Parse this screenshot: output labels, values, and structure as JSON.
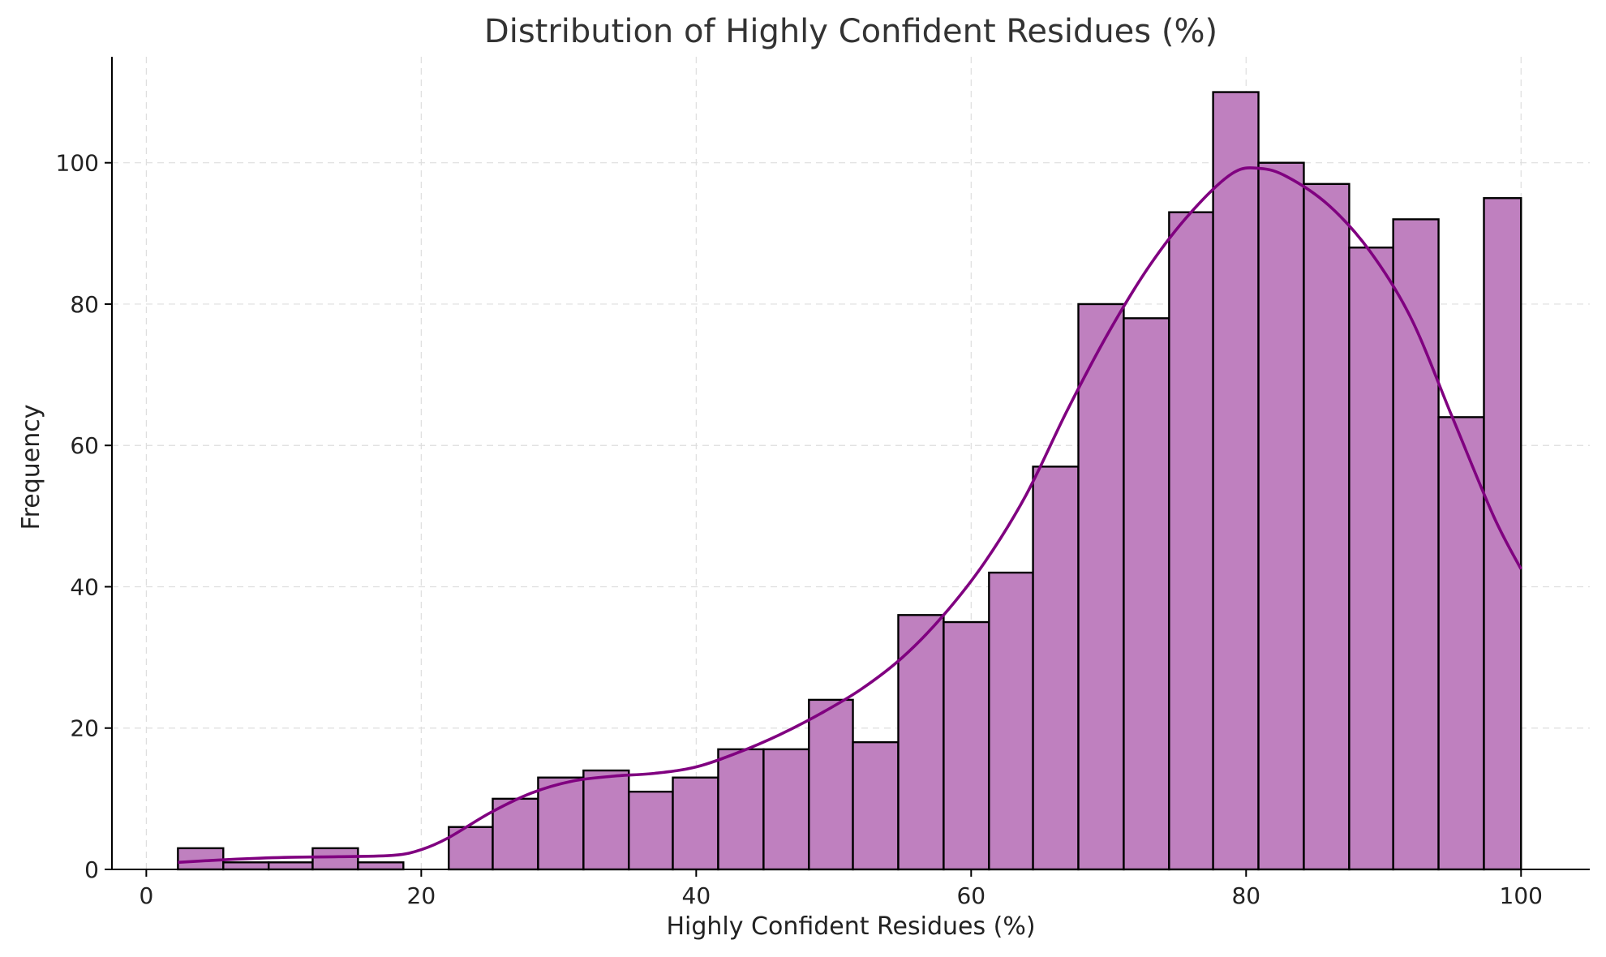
{
  "chart_data": {
    "type": "bar",
    "title": "Distribution of Highly Confident Residues (%)",
    "xlabel": "Highly Confident Residues (%)",
    "ylabel": "Frequency",
    "xlim": [
      -2.5,
      105
    ],
    "ylim": [
      0,
      115
    ],
    "xticks": [
      0,
      20,
      40,
      60,
      80,
      100
    ],
    "yticks": [
      0,
      20,
      40,
      60,
      80,
      100
    ],
    "grid": true,
    "bar_color": "#bf80bf",
    "line_color": "#800080",
    "bins": [
      {
        "x0": 2.3,
        "x1": 5.6,
        "count": 3
      },
      {
        "x0": 5.6,
        "x1": 8.9,
        "count": 1
      },
      {
        "x0": 8.9,
        "x1": 12.1,
        "count": 1
      },
      {
        "x0": 12.1,
        "x1": 15.4,
        "count": 3
      },
      {
        "x0": 15.4,
        "x1": 18.7,
        "count": 1
      },
      {
        "x0": 18.7,
        "x1": 22.0,
        "count": 0
      },
      {
        "x0": 22.0,
        "x1": 25.2,
        "count": 6
      },
      {
        "x0": 25.2,
        "x1": 28.5,
        "count": 10
      },
      {
        "x0": 28.5,
        "x1": 31.8,
        "count": 13
      },
      {
        "x0": 31.8,
        "x1": 35.1,
        "count": 14
      },
      {
        "x0": 35.1,
        "x1": 38.3,
        "count": 11
      },
      {
        "x0": 38.3,
        "x1": 41.6,
        "count": 13
      },
      {
        "x0": 41.6,
        "x1": 44.9,
        "count": 17
      },
      {
        "x0": 44.9,
        "x1": 48.2,
        "count": 17
      },
      {
        "x0": 48.2,
        "x1": 51.4,
        "count": 24
      },
      {
        "x0": 51.4,
        "x1": 54.7,
        "count": 18
      },
      {
        "x0": 54.7,
        "x1": 58.0,
        "count": 36
      },
      {
        "x0": 58.0,
        "x1": 61.3,
        "count": 35
      },
      {
        "x0": 61.3,
        "x1": 64.5,
        "count": 42
      },
      {
        "x0": 64.5,
        "x1": 67.8,
        "count": 57
      },
      {
        "x0": 67.8,
        "x1": 71.1,
        "count": 80
      },
      {
        "x0": 71.1,
        "x1": 74.4,
        "count": 78
      },
      {
        "x0": 74.4,
        "x1": 77.6,
        "count": 93
      },
      {
        "x0": 77.6,
        "x1": 80.9,
        "count": 110
      },
      {
        "x0": 80.9,
        "x1": 84.2,
        "count": 100
      },
      {
        "x0": 84.2,
        "x1": 87.5,
        "count": 97
      },
      {
        "x0": 87.5,
        "x1": 90.7,
        "count": 88
      },
      {
        "x0": 90.7,
        "x1": 94.0,
        "count": 92
      },
      {
        "x0": 94.0,
        "x1": 97.3,
        "count": 64
      },
      {
        "x0": 97.3,
        "x1": 100.0,
        "count": 95
      }
    ],
    "kde": {
      "x": [
        2.3,
        6,
        10,
        14,
        18,
        20,
        22,
        25,
        28,
        31,
        34,
        37,
        40,
        43,
        46,
        49,
        52,
        55,
        58,
        61,
        64,
        67,
        70,
        73,
        76,
        79,
        81,
        83,
        86,
        89,
        92,
        95,
        98,
        100
      ],
      "y": [
        1.0,
        1.4,
        1.7,
        1.8,
        2.0,
        2.8,
        4.5,
        8.0,
        10.8,
        12.5,
        13.2,
        13.6,
        14.5,
        16.5,
        19.0,
        22.0,
        25.5,
        30.0,
        36.0,
        43.5,
        53.0,
        65.0,
        76.0,
        85.5,
        93.0,
        98.5,
        99.2,
        98.0,
        94.0,
        87.5,
        78.0,
        64.0,
        50.0,
        42.5
      ]
    }
  }
}
